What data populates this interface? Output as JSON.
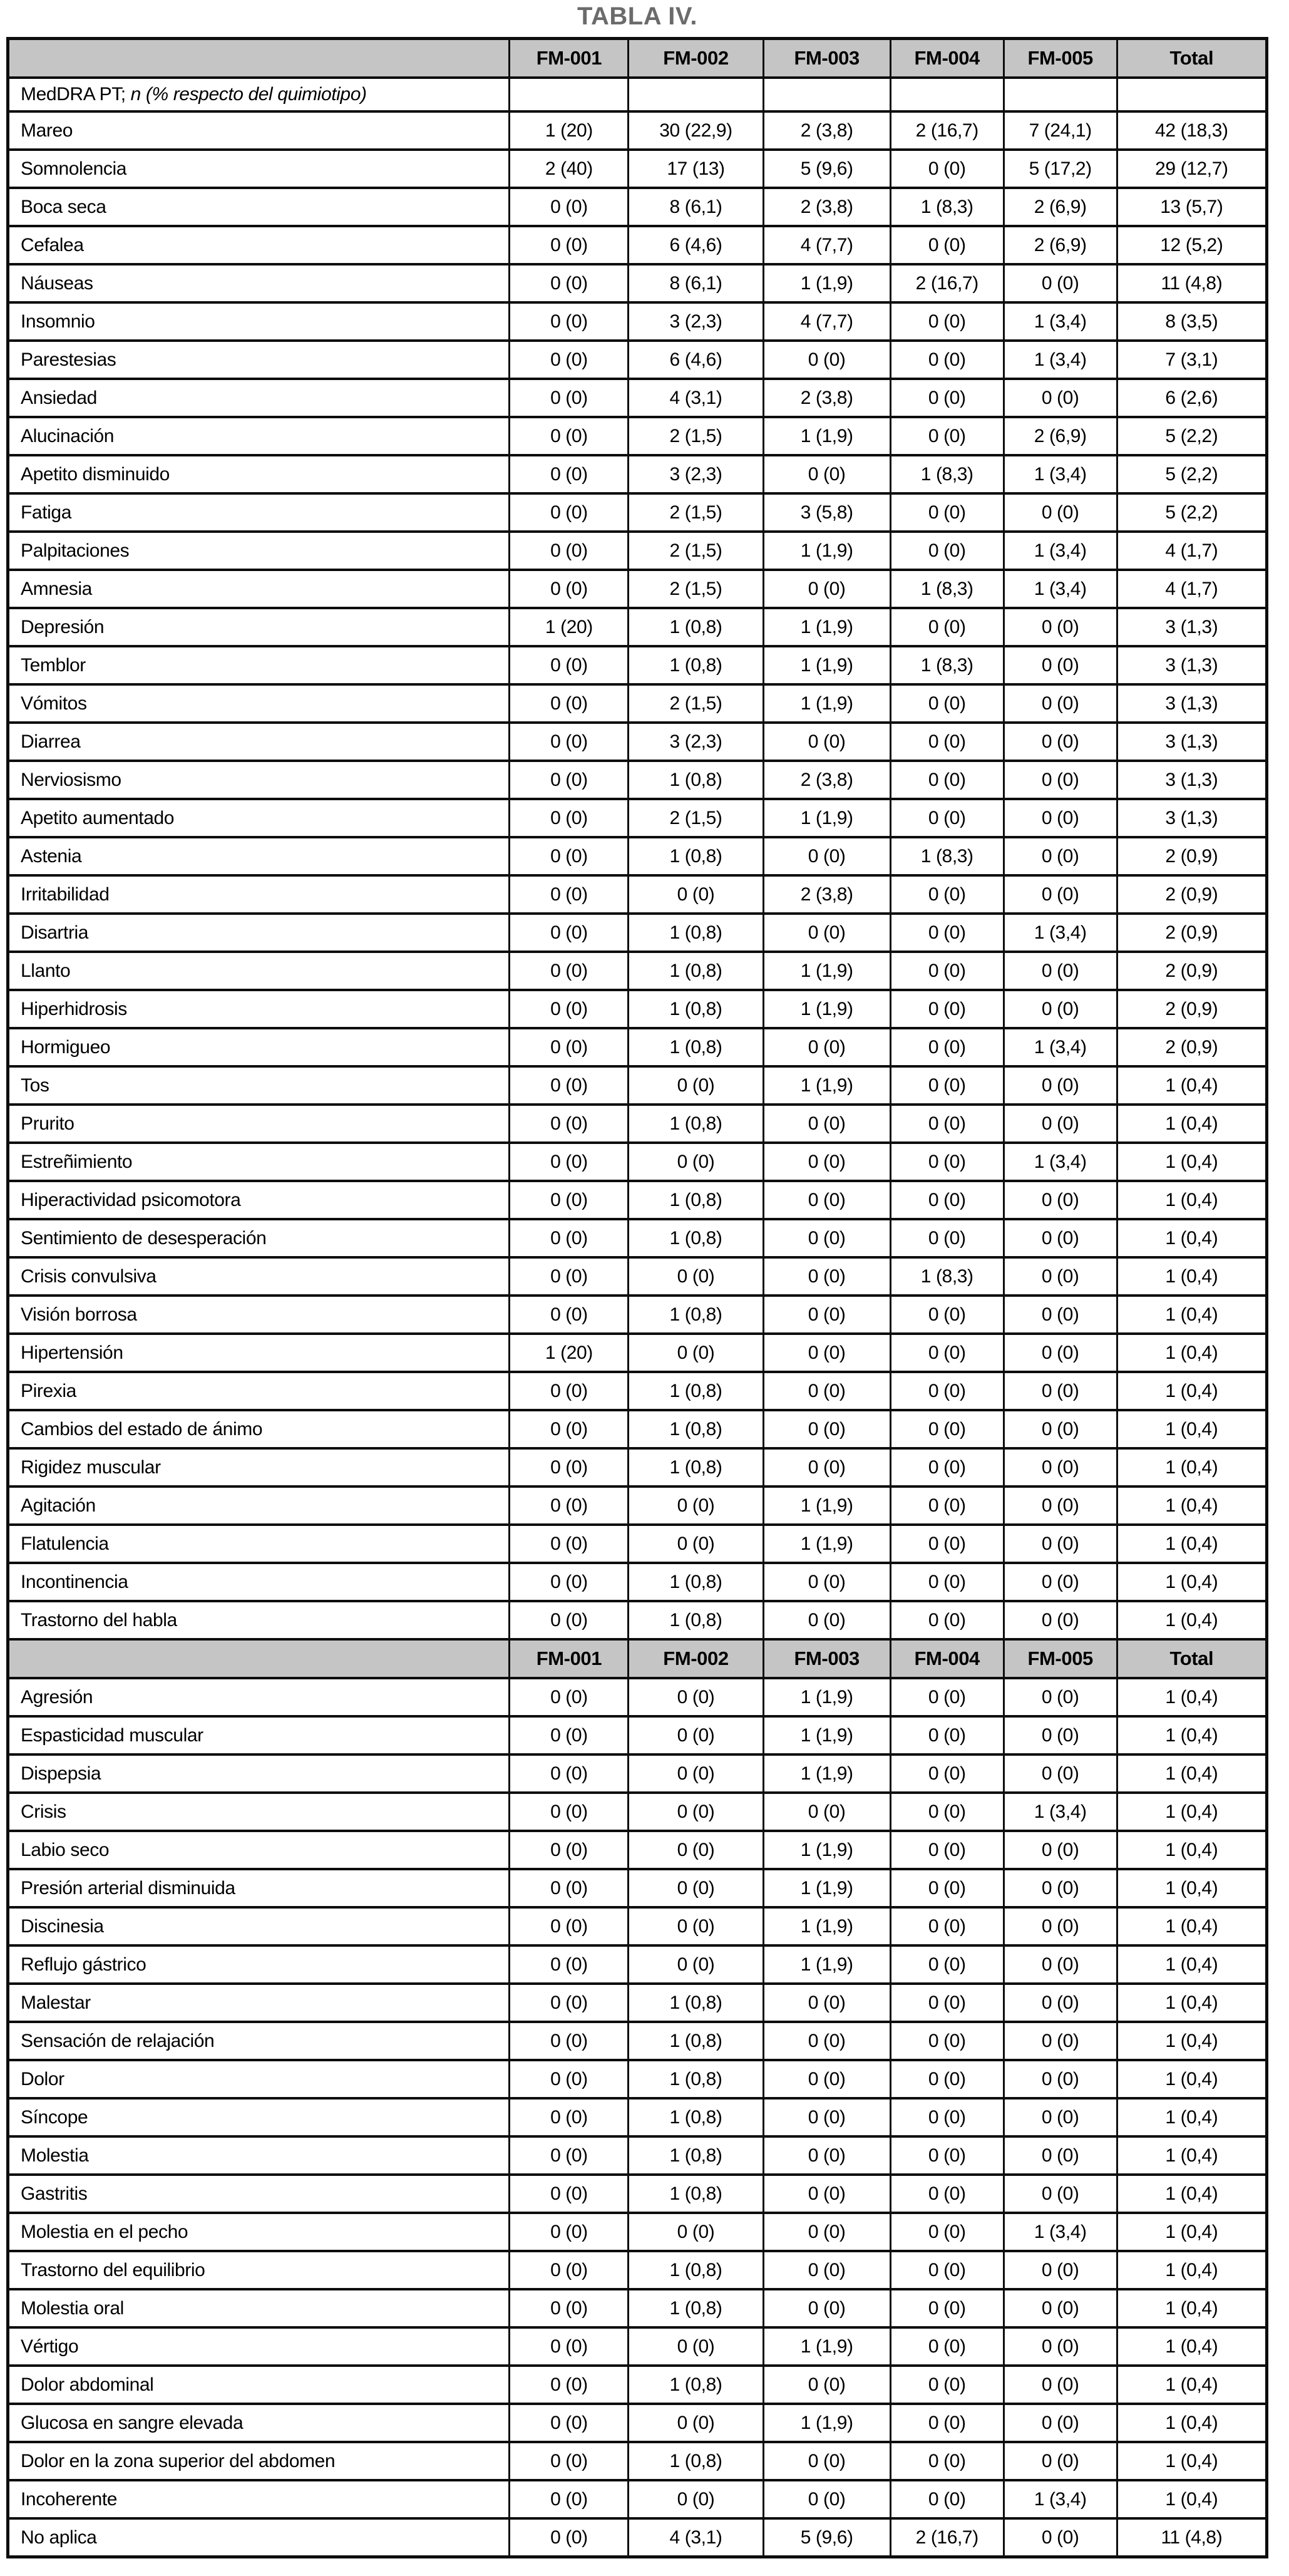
{
  "title": "TABLA IV.",
  "table": {
    "columns": [
      "FM-001",
      "FM-002",
      "FM-003",
      "FM-004",
      "FM-005",
      "Total"
    ],
    "subheader": {
      "plain": "MedDRA PT; ",
      "italic": "n (% respecto del quimiotipo)"
    },
    "header_bg": "#c5c5c5",
    "title_color": "#6b6b6b",
    "sections": [
      {
        "rows": [
          {
            "label": "Mareo",
            "values": [
              "1 (20)",
              "30 (22,9)",
              "2 (3,8)",
              "2 (16,7)",
              "7 (24,1)",
              "42 (18,3)"
            ]
          },
          {
            "label": "Somnolencia",
            "values": [
              "2 (40)",
              "17 (13)",
              "5 (9,6)",
              "0 (0)",
              "5 (17,2)",
              "29 (12,7)"
            ]
          },
          {
            "label": "Boca seca",
            "values": [
              "0 (0)",
              "8 (6,1)",
              "2 (3,8)",
              "1 (8,3)",
              "2 (6,9)",
              "13 (5,7)"
            ]
          },
          {
            "label": "Cefalea",
            "values": [
              "0 (0)",
              "6 (4,6)",
              "4 (7,7)",
              "0 (0)",
              "2 (6,9)",
              "12 (5,2)"
            ]
          },
          {
            "label": "Náuseas",
            "values": [
              "0 (0)",
              "8 (6,1)",
              "1 (1,9)",
              "2 (16,7)",
              "0 (0)",
              "11 (4,8)"
            ]
          },
          {
            "label": "Insomnio",
            "values": [
              "0 (0)",
              "3 (2,3)",
              "4 (7,7)",
              "0 (0)",
              "1 (3,4)",
              "8 (3,5)"
            ]
          },
          {
            "label": "Parestesias",
            "values": [
              "0 (0)",
              "6 (4,6)",
              "0 (0)",
              "0 (0)",
              "1 (3,4)",
              "7 (3,1)"
            ]
          },
          {
            "label": "Ansiedad",
            "values": [
              "0 (0)",
              "4 (3,1)",
              "2 (3,8)",
              "0 (0)",
              "0 (0)",
              "6 (2,6)"
            ]
          },
          {
            "label": "Alucinación",
            "values": [
              "0 (0)",
              "2 (1,5)",
              "1 (1,9)",
              "0 (0)",
              "2 (6,9)",
              "5 (2,2)"
            ]
          },
          {
            "label": "Apetito disminuido",
            "values": [
              "0 (0)",
              "3 (2,3)",
              "0 (0)",
              "1 (8,3)",
              "1 (3,4)",
              "5 (2,2)"
            ]
          },
          {
            "label": "Fatiga",
            "values": [
              "0 (0)",
              "2 (1,5)",
              "3 (5,8)",
              "0 (0)",
              "0 (0)",
              "5 (2,2)"
            ]
          },
          {
            "label": "Palpitaciones",
            "values": [
              "0 (0)",
              "2 (1,5)",
              "1 (1,9)",
              "0 (0)",
              "1 (3,4)",
              "4 (1,7)"
            ]
          },
          {
            "label": "Amnesia",
            "values": [
              "0 (0)",
              "2 (1,5)",
              "0 (0)",
              "1 (8,3)",
              "1 (3,4)",
              "4 (1,7)"
            ]
          },
          {
            "label": "Depresión",
            "values": [
              "1 (20)",
              "1 (0,8)",
              "1 (1,9)",
              "0 (0)",
              "0 (0)",
              "3 (1,3)"
            ]
          },
          {
            "label": "Temblor",
            "values": [
              "0 (0)",
              "1 (0,8)",
              "1 (1,9)",
              "1 (8,3)",
              "0 (0)",
              "3 (1,3)"
            ]
          },
          {
            "label": "Vómitos",
            "values": [
              "0 (0)",
              "2 (1,5)",
              "1 (1,9)",
              "0 (0)",
              "0 (0)",
              "3 (1,3)"
            ]
          },
          {
            "label": "Diarrea",
            "values": [
              "0 (0)",
              "3 (2,3)",
              "0 (0)",
              "0 (0)",
              "0 (0)",
              "3 (1,3)"
            ]
          },
          {
            "label": "Nerviosismo",
            "values": [
              "0 (0)",
              "1 (0,8)",
              "2 (3,8)",
              "0 (0)",
              "0 (0)",
              "3 (1,3)"
            ]
          },
          {
            "label": "Apetito aumentado",
            "values": [
              "0 (0)",
              "2 (1,5)",
              "1 (1,9)",
              "0 (0)",
              "0 (0)",
              "3 (1,3)"
            ]
          },
          {
            "label": "Astenia",
            "values": [
              "0 (0)",
              "1 (0,8)",
              "0 (0)",
              "1 (8,3)",
              "0 (0)",
              "2 (0,9)"
            ]
          },
          {
            "label": "Irritabilidad",
            "values": [
              "0 (0)",
              "0 (0)",
              "2 (3,8)",
              "0 (0)",
              "0 (0)",
              "2 (0,9)"
            ]
          },
          {
            "label": "Disartria",
            "values": [
              "0 (0)",
              "1 (0,8)",
              "0 (0)",
              "0 (0)",
              "1 (3,4)",
              "2 (0,9)"
            ]
          },
          {
            "label": "Llanto",
            "values": [
              "0 (0)",
              "1 (0,8)",
              "1 (1,9)",
              "0 (0)",
              "0 (0)",
              "2 (0,9)"
            ]
          },
          {
            "label": "Hiperhidrosis",
            "values": [
              "0 (0)",
              "1 (0,8)",
              "1 (1,9)",
              "0 (0)",
              "0 (0)",
              "2 (0,9)"
            ]
          },
          {
            "label": "Hormigueo",
            "values": [
              "0 (0)",
              "1 (0,8)",
              "0 (0)",
              "0 (0)",
              "1 (3,4)",
              "2 (0,9)"
            ]
          },
          {
            "label": "Tos",
            "values": [
              "0 (0)",
              "0 (0)",
              "1 (1,9)",
              "0 (0)",
              "0 (0)",
              "1 (0,4)"
            ]
          },
          {
            "label": "Prurito",
            "values": [
              "0 (0)",
              "1 (0,8)",
              "0 (0)",
              "0 (0)",
              "0 (0)",
              "1 (0,4)"
            ]
          },
          {
            "label": "Estreñimiento",
            "values": [
              "0 (0)",
              "0 (0)",
              "0 (0)",
              "0 (0)",
              "1 (3,4)",
              "1 (0,4)"
            ]
          },
          {
            "label": "Hiperactividad psicomotora",
            "values": [
              "0 (0)",
              "1 (0,8)",
              "0 (0)",
              "0 (0)",
              "0 (0)",
              "1 (0,4)"
            ]
          },
          {
            "label": "Sentimiento de desesperación",
            "values": [
              "0 (0)",
              "1 (0,8)",
              "0 (0)",
              "0 (0)",
              "0 (0)",
              "1 (0,4)"
            ]
          },
          {
            "label": "Crisis convulsiva",
            "values": [
              "0 (0)",
              "0 (0)",
              "0 (0)",
              "1 (8,3)",
              "0 (0)",
              "1 (0,4)"
            ]
          },
          {
            "label": "Visión borrosa",
            "values": [
              "0 (0)",
              "1 (0,8)",
              "0 (0)",
              "0 (0)",
              "0 (0)",
              "1 (0,4)"
            ]
          },
          {
            "label": "Hipertensión",
            "values": [
              "1 (20)",
              "0 (0)",
              "0 (0)",
              "0 (0)",
              "0 (0)",
              "1 (0,4)"
            ]
          },
          {
            "label": "Pirexia",
            "values": [
              "0 (0)",
              "1 (0,8)",
              "0 (0)",
              "0 (0)",
              "0 (0)",
              "1 (0,4)"
            ]
          },
          {
            "label": "Cambios del estado de ánimo",
            "values": [
              "0 (0)",
              "1 (0,8)",
              "0 (0)",
              "0 (0)",
              "0 (0)",
              "1 (0,4)"
            ]
          },
          {
            "label": "Rigidez muscular",
            "values": [
              "0 (0)",
              "1 (0,8)",
              "0 (0)",
              "0 (0)",
              "0 (0)",
              "1 (0,4)"
            ]
          },
          {
            "label": "Agitación",
            "values": [
              "0 (0)",
              "0 (0)",
              "1 (1,9)",
              "0 (0)",
              "0 (0)",
              "1 (0,4)"
            ]
          },
          {
            "label": "Flatulencia",
            "values": [
              "0 (0)",
              "0 (0)",
              "1 (1,9)",
              "0 (0)",
              "0 (0)",
              "1 (0,4)"
            ]
          },
          {
            "label": "Incontinencia",
            "values": [
              "0 (0)",
              "1 (0,8)",
              "0 (0)",
              "0 (0)",
              "0 (0)",
              "1 (0,4)"
            ]
          },
          {
            "label": "Trastorno del habla",
            "values": [
              "0 (0)",
              "1 (0,8)",
              "0 (0)",
              "0 (0)",
              "0 (0)",
              "1 (0,4)"
            ]
          }
        ]
      },
      {
        "rows": [
          {
            "label": "Agresión",
            "values": [
              "0 (0)",
              "0 (0)",
              "1 (1,9)",
              "0 (0)",
              "0 (0)",
              "1 (0,4)"
            ]
          },
          {
            "label": "Espasticidad muscular",
            "values": [
              "0 (0)",
              "0 (0)",
              "1 (1,9)",
              "0 (0)",
              "0 (0)",
              "1 (0,4)"
            ]
          },
          {
            "label": "Dispepsia",
            "values": [
              "0 (0)",
              "0 (0)",
              "1 (1,9)",
              "0 (0)",
              "0 (0)",
              "1 (0,4)"
            ]
          },
          {
            "label": "Crisis",
            "values": [
              "0 (0)",
              "0 (0)",
              "0 (0)",
              "0 (0)",
              "1 (3,4)",
              "1 (0,4)"
            ]
          },
          {
            "label": "Labio seco",
            "values": [
              "0 (0)",
              "0 (0)",
              "1 (1,9)",
              "0 (0)",
              "0 (0)",
              "1 (0,4)"
            ]
          },
          {
            "label": "Presión arterial disminuida",
            "values": [
              "0 (0)",
              "0 (0)",
              "1 (1,9)",
              "0 (0)",
              "0 (0)",
              "1 (0,4)"
            ]
          },
          {
            "label": "Discinesia",
            "values": [
              "0 (0)",
              "0 (0)",
              "1 (1,9)",
              "0 (0)",
              "0 (0)",
              "1 (0,4)"
            ]
          },
          {
            "label": "Reflujo gástrico",
            "values": [
              "0 (0)",
              "0 (0)",
              "1 (1,9)",
              "0 (0)",
              "0 (0)",
              "1 (0,4)"
            ]
          },
          {
            "label": "Malestar",
            "values": [
              "0 (0)",
              "1 (0,8)",
              "0 (0)",
              "0 (0)",
              "0 (0)",
              "1 (0,4)"
            ]
          },
          {
            "label": "Sensación de relajación",
            "values": [
              "0 (0)",
              "1 (0,8)",
              "0 (0)",
              "0 (0)",
              "0 (0)",
              "1 (0,4)"
            ]
          },
          {
            "label": "Dolor",
            "values": [
              "0 (0)",
              "1 (0,8)",
              "0 (0)",
              "0 (0)",
              "0 (0)",
              "1 (0,4)"
            ]
          },
          {
            "label": "Síncope",
            "values": [
              "0 (0)",
              "1 (0,8)",
              "0 (0)",
              "0 (0)",
              "0 (0)",
              "1 (0,4)"
            ]
          },
          {
            "label": "Molestia",
            "values": [
              "0 (0)",
              "1 (0,8)",
              "0 (0)",
              "0 (0)",
              "0 (0)",
              "1 (0,4)"
            ]
          },
          {
            "label": "Gastritis",
            "values": [
              "0 (0)",
              "1 (0,8)",
              "0 (0)",
              "0 (0)",
              "0 (0)",
              "1 (0,4)"
            ]
          },
          {
            "label": "Molestia en el pecho",
            "values": [
              "0 (0)",
              "0 (0)",
              "0 (0)",
              "0 (0)",
              "1 (3,4)",
              "1 (0,4)"
            ]
          },
          {
            "label": "Trastorno del equilibrio",
            "values": [
              "0 (0)",
              "1 (0,8)",
              "0 (0)",
              "0 (0)",
              "0 (0)",
              "1 (0,4)"
            ]
          },
          {
            "label": "Molestia oral",
            "values": [
              "0 (0)",
              "1 (0,8)",
              "0 (0)",
              "0 (0)",
              "0 (0)",
              "1 (0,4)"
            ]
          },
          {
            "label": "Vértigo",
            "values": [
              "0 (0)",
              "0 (0)",
              "1 (1,9)",
              "0 (0)",
              "0 (0)",
              "1 (0,4)"
            ]
          },
          {
            "label": "Dolor abdominal",
            "values": [
              "0 (0)",
              "1 (0,8)",
              "0 (0)",
              "0 (0)",
              "0 (0)",
              "1 (0,4)"
            ]
          },
          {
            "label": "Glucosa en sangre elevada",
            "values": [
              "0 (0)",
              "0 (0)",
              "1 (1,9)",
              "0 (0)",
              "0 (0)",
              "1 (0,4)"
            ]
          },
          {
            "label": "Dolor en la zona superior del abdomen",
            "values": [
              "0 (0)",
              "1 (0,8)",
              "0 (0)",
              "0 (0)",
              "0 (0)",
              "1 (0,4)"
            ]
          },
          {
            "label": "Incoherente",
            "values": [
              "0 (0)",
              "0 (0)",
              "0 (0)",
              "0 (0)",
              "1 (3,4)",
              "1 (0,4)"
            ]
          },
          {
            "label": "No aplica",
            "values": [
              "0 (0)",
              "4 (3,1)",
              "5 (9,6)",
              "2 (16,7)",
              "0 (0)",
              "11 (4,8)"
            ]
          }
        ]
      }
    ]
  }
}
